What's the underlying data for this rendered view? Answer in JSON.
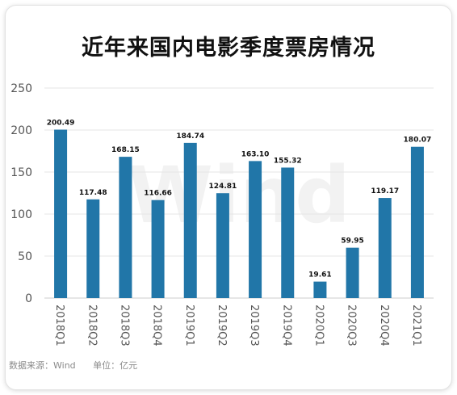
{
  "title": "近年来国内电影季度票房情况",
  "footer": {
    "source": "数据来源：Wind",
    "unit": "单位：亿元"
  },
  "watermark": "Wind",
  "colors": {
    "bar": "#2176a8",
    "grid": "#e6e6e6",
    "axis_text": "#555555",
    "label_text": "#111111"
  },
  "chart_data": {
    "type": "bar",
    "title": "近年来国内电影季度票房情况",
    "categories": [
      "2018Q1",
      "2018Q2",
      "2018Q3",
      "2018Q4",
      "2019Q1",
      "2019Q2",
      "2019Q3",
      "2019Q4",
      "2020Q1",
      "2020Q3",
      "2020Q4",
      "2021Q1"
    ],
    "values": [
      200.49,
      117.48,
      168.15,
      116.66,
      184.74,
      124.81,
      163.1,
      155.32,
      19.61,
      59.95,
      119.17,
      180.07
    ],
    "value_labels": [
      "200.49",
      "117.48",
      "168.15",
      "116.66",
      "184.74",
      "124.81",
      "163.10",
      "155.32",
      "19.61",
      "59.95",
      "119.17",
      "180.07"
    ],
    "yticks": [
      0,
      50,
      100,
      150,
      200,
      250
    ],
    "ylim": [
      0,
      250
    ],
    "grid": true,
    "legend": "none",
    "xlabel": "",
    "ylabel": ""
  }
}
